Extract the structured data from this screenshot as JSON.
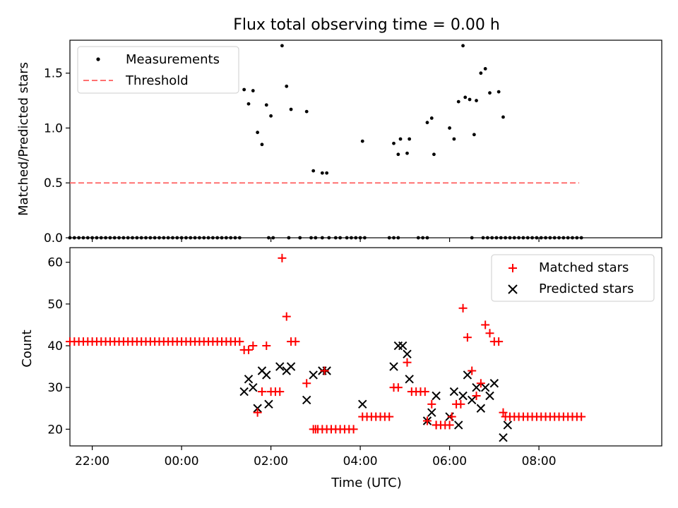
{
  "chart_data": [
    {
      "type": "scatter",
      "title": "Flux total observing time = 0.00 h",
      "xlabel": "",
      "ylabel": "Matched/Predicted stars",
      "xlim": [
        -2.5,
        10.75
      ],
      "ylim": [
        0,
        1.8
      ],
      "yticks": [
        0.0,
        0.5,
        1.0,
        1.5
      ],
      "ytick_labels": [
        "0.0",
        "0.5",
        "1.0",
        "1.5"
      ],
      "grid": false,
      "legend_position": "upper-left",
      "series": [
        {
          "name": "Measurements",
          "marker": "dot",
          "color": "#000000",
          "zero_points_x": [
            -2.5,
            -2.4,
            -2.3,
            -2.2,
            -2.1,
            -2.0,
            -1.9,
            -1.8,
            -1.7,
            -1.6,
            -1.5,
            -1.4,
            -1.3,
            -1.2,
            -1.1,
            -1.0,
            -0.9,
            -0.8,
            -0.7,
            -0.6,
            -0.5,
            -0.4,
            -0.3,
            -0.2,
            -0.1,
            0.0,
            0.1,
            0.2,
            0.3,
            0.4,
            0.5,
            0.6,
            0.7,
            0.8,
            0.9,
            1.0,
            1.1,
            1.2,
            1.3,
            1.95,
            2.05,
            2.4,
            2.65,
            2.9,
            3.0,
            3.15,
            3.3,
            3.45,
            3.55,
            3.7,
            3.8,
            3.9,
            4.0,
            4.1,
            4.65,
            4.75,
            4.85,
            5.3,
            5.4,
            5.5,
            6.5,
            6.75,
            6.85,
            6.95,
            7.05,
            7.15,
            7.25,
            7.35,
            7.45,
            7.55,
            7.65,
            7.75,
            7.85,
            7.95,
            8.05,
            8.15,
            8.25,
            8.35,
            8.45,
            8.55,
            8.65,
            8.75,
            8.85,
            8.95
          ],
          "points": [
            {
              "x": 1.4,
              "y": 1.35
            },
            {
              "x": 1.5,
              "y": 1.22
            },
            {
              "x": 1.6,
              "y": 1.34
            },
            {
              "x": 1.7,
              "y": 0.96
            },
            {
              "x": 1.8,
              "y": 0.85
            },
            {
              "x": 1.9,
              "y": 1.21
            },
            {
              "x": 2.0,
              "y": 1.11
            },
            {
              "x": 2.25,
              "y": 1.75
            },
            {
              "x": 2.35,
              "y": 1.38
            },
            {
              "x": 2.45,
              "y": 1.17
            },
            {
              "x": 2.8,
              "y": 1.15
            },
            {
              "x": 2.95,
              "y": 0.61
            },
            {
              "x": 3.15,
              "y": 0.59
            },
            {
              "x": 3.25,
              "y": 0.59
            },
            {
              "x": 4.05,
              "y": 0.88
            },
            {
              "x": 4.75,
              "y": 0.86
            },
            {
              "x": 4.85,
              "y": 0.76
            },
            {
              "x": 4.9,
              "y": 0.9
            },
            {
              "x": 5.05,
              "y": 0.77
            },
            {
              "x": 5.1,
              "y": 0.9
            },
            {
              "x": 5.5,
              "y": 1.05
            },
            {
              "x": 5.6,
              "y": 1.09
            },
            {
              "x": 5.65,
              "y": 0.76
            },
            {
              "x": 6.0,
              "y": 1.0
            },
            {
              "x": 6.1,
              "y": 0.9
            },
            {
              "x": 6.2,
              "y": 1.24
            },
            {
              "x": 6.3,
              "y": 1.75
            },
            {
              "x": 6.35,
              "y": 1.28
            },
            {
              "x": 6.45,
              "y": 1.26
            },
            {
              "x": 6.55,
              "y": 0.94
            },
            {
              "x": 6.6,
              "y": 1.25
            },
            {
              "x": 6.7,
              "y": 1.5
            },
            {
              "x": 6.8,
              "y": 1.54
            },
            {
              "x": 6.9,
              "y": 1.32
            },
            {
              "x": 7.1,
              "y": 1.33
            },
            {
              "x": 7.2,
              "y": 1.1
            }
          ]
        },
        {
          "name": "Threshold",
          "style": "dashed-line",
          "color": "#ff7070",
          "x": [
            -2.5,
            8.9
          ],
          "y": [
            0.5,
            0.5
          ]
        }
      ]
    },
    {
      "type": "scatter",
      "title": "",
      "xlabel": "Time (UTC)",
      "ylabel": "Count",
      "xlim": [
        -2.5,
        10.75
      ],
      "ylim": [
        16,
        63.5
      ],
      "yticks": [
        20,
        30,
        40,
        50,
        60
      ],
      "ytick_labels": [
        "20",
        "30",
        "40",
        "50",
        "60"
      ],
      "xticks": [
        -2,
        0,
        2,
        4,
        6,
        8
      ],
      "xtick_labels": [
        "22:00",
        "00:00",
        "02:00",
        "04:00",
        "06:00",
        "08:00"
      ],
      "grid": false,
      "legend_position": "upper-right",
      "series": [
        {
          "name": "Matched stars",
          "marker": "plus",
          "color": "#ff0000",
          "segments": [
            {
              "x_start": -2.5,
              "x_end": 1.3,
              "step": 0.1,
              "y": 41
            },
            {
              "x_start": 2.95,
              "x_end": 3.85,
              "step": 0.1,
              "y": 20
            },
            {
              "x_start": 4.05,
              "x_end": 4.65,
              "step": 0.1,
              "y": 23
            },
            {
              "x_start": 5.15,
              "x_end": 5.45,
              "step": 0.1,
              "y": 29
            },
            {
              "x_start": 5.7,
              "x_end": 6.0,
              "step": 0.1,
              "y": 21
            },
            {
              "x_start": 7.25,
              "x_end": 8.95,
              "step": 0.1,
              "y": 23
            }
          ],
          "points": [
            {
              "x": 1.4,
              "y": 39
            },
            {
              "x": 1.5,
              "y": 39
            },
            {
              "x": 1.6,
              "y": 40
            },
            {
              "x": 1.7,
              "y": 24
            },
            {
              "x": 1.8,
              "y": 29
            },
            {
              "x": 1.9,
              "y": 40
            },
            {
              "x": 2.0,
              "y": 29
            },
            {
              "x": 2.1,
              "y": 29
            },
            {
              "x": 2.2,
              "y": 29
            },
            {
              "x": 2.25,
              "y": 61
            },
            {
              "x": 2.35,
              "y": 47
            },
            {
              "x": 2.45,
              "y": 41
            },
            {
              "x": 2.55,
              "y": 41
            },
            {
              "x": 2.8,
              "y": 31
            },
            {
              "x": 3.0,
              "y": 20
            },
            {
              "x": 3.2,
              "y": 34
            },
            {
              "x": 4.75,
              "y": 30
            },
            {
              "x": 4.85,
              "y": 30
            },
            {
              "x": 5.05,
              "y": 36
            },
            {
              "x": 5.5,
              "y": 22
            },
            {
              "x": 5.6,
              "y": 26
            },
            {
              "x": 5.7,
              "y": 21
            },
            {
              "x": 6.05,
              "y": 23
            },
            {
              "x": 6.15,
              "y": 26
            },
            {
              "x": 6.25,
              "y": 26
            },
            {
              "x": 6.3,
              "y": 49
            },
            {
              "x": 6.4,
              "y": 42
            },
            {
              "x": 6.5,
              "y": 34
            },
            {
              "x": 6.6,
              "y": 28
            },
            {
              "x": 6.7,
              "y": 31
            },
            {
              "x": 6.8,
              "y": 45
            },
            {
              "x": 6.9,
              "y": 43
            },
            {
              "x": 7.0,
              "y": 41
            },
            {
              "x": 7.1,
              "y": 41
            },
            {
              "x": 7.2,
              "y": 24
            }
          ]
        },
        {
          "name": "Predicted stars",
          "marker": "x",
          "color": "#000000",
          "points": [
            {
              "x": 1.4,
              "y": 29
            },
            {
              "x": 1.5,
              "y": 32
            },
            {
              "x": 1.6,
              "y": 30
            },
            {
              "x": 1.7,
              "y": 25
            },
            {
              "x": 1.8,
              "y": 34
            },
            {
              "x": 1.9,
              "y": 33
            },
            {
              "x": 1.95,
              "y": 26
            },
            {
              "x": 2.2,
              "y": 35
            },
            {
              "x": 2.35,
              "y": 34
            },
            {
              "x": 2.45,
              "y": 35
            },
            {
              "x": 2.8,
              "y": 27
            },
            {
              "x": 2.95,
              "y": 33
            },
            {
              "x": 3.15,
              "y": 34
            },
            {
              "x": 3.25,
              "y": 34
            },
            {
              "x": 4.05,
              "y": 26
            },
            {
              "x": 4.75,
              "y": 35
            },
            {
              "x": 4.85,
              "y": 40
            },
            {
              "x": 4.95,
              "y": 40
            },
            {
              "x": 5.05,
              "y": 38
            },
            {
              "x": 5.1,
              "y": 32
            },
            {
              "x": 5.5,
              "y": 22
            },
            {
              "x": 5.6,
              "y": 24
            },
            {
              "x": 5.7,
              "y": 28
            },
            {
              "x": 6.0,
              "y": 23
            },
            {
              "x": 6.1,
              "y": 29
            },
            {
              "x": 6.2,
              "y": 21
            },
            {
              "x": 6.3,
              "y": 28
            },
            {
              "x": 6.4,
              "y": 33
            },
            {
              "x": 6.5,
              "y": 27
            },
            {
              "x": 6.6,
              "y": 30
            },
            {
              "x": 6.7,
              "y": 25
            },
            {
              "x": 6.8,
              "y": 30
            },
            {
              "x": 6.9,
              "y": 28
            },
            {
              "x": 7.0,
              "y": 31
            },
            {
              "x": 7.2,
              "y": 18
            },
            {
              "x": 7.3,
              "y": 21
            }
          ]
        }
      ]
    }
  ]
}
